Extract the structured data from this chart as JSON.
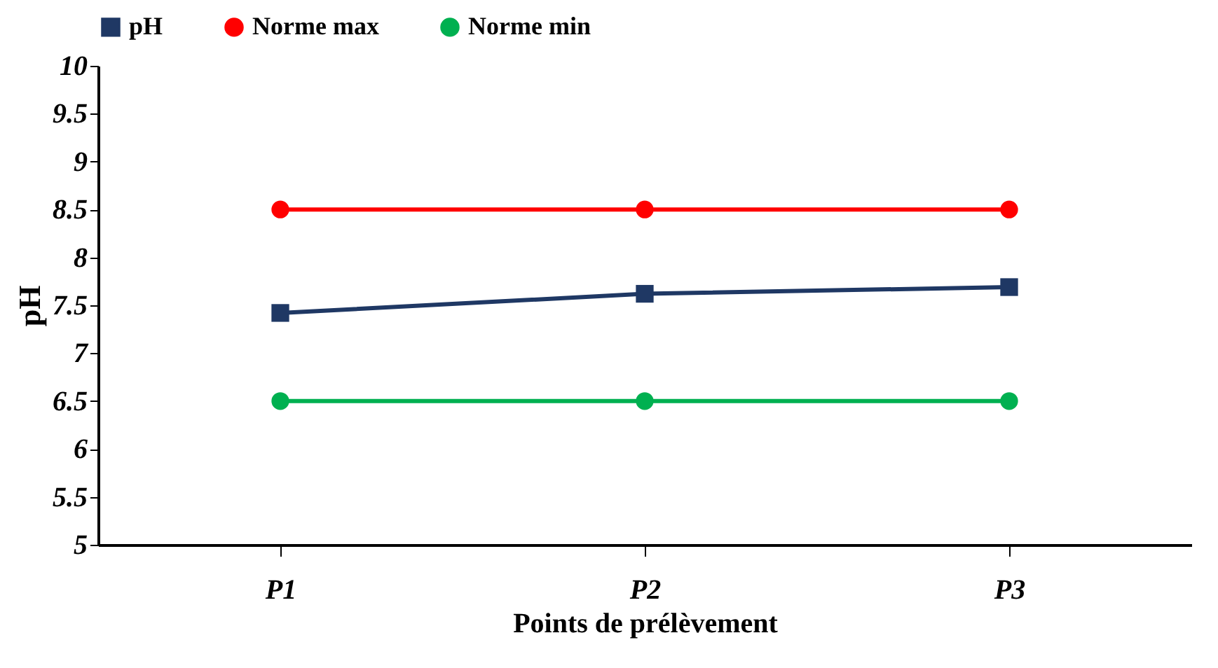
{
  "chart_data": {
    "type": "line",
    "xlabel": "Points de prélèvement",
    "ylabel": "pH",
    "categories": [
      "P1",
      "P2",
      "P3"
    ],
    "series": [
      {
        "name": "pH",
        "color": "#1f3864",
        "values": [
          7.42,
          7.62,
          7.69
        ],
        "marker": "square"
      },
      {
        "name": "Norme max",
        "color": "#ff0000",
        "values": [
          8.5,
          8.5,
          8.5
        ],
        "marker": "circle"
      },
      {
        "name": "Norme min",
        "color": "#00b050",
        "values": [
          6.5,
          6.5,
          6.5
        ],
        "marker": "circle"
      }
    ],
    "ylim": [
      5,
      10
    ],
    "yticks": [
      5,
      5.5,
      6,
      6.5,
      7,
      7.5,
      8,
      8.5,
      9,
      9.5,
      10
    ],
    "grid": false,
    "legend": "top",
    "line_style": "solid"
  }
}
